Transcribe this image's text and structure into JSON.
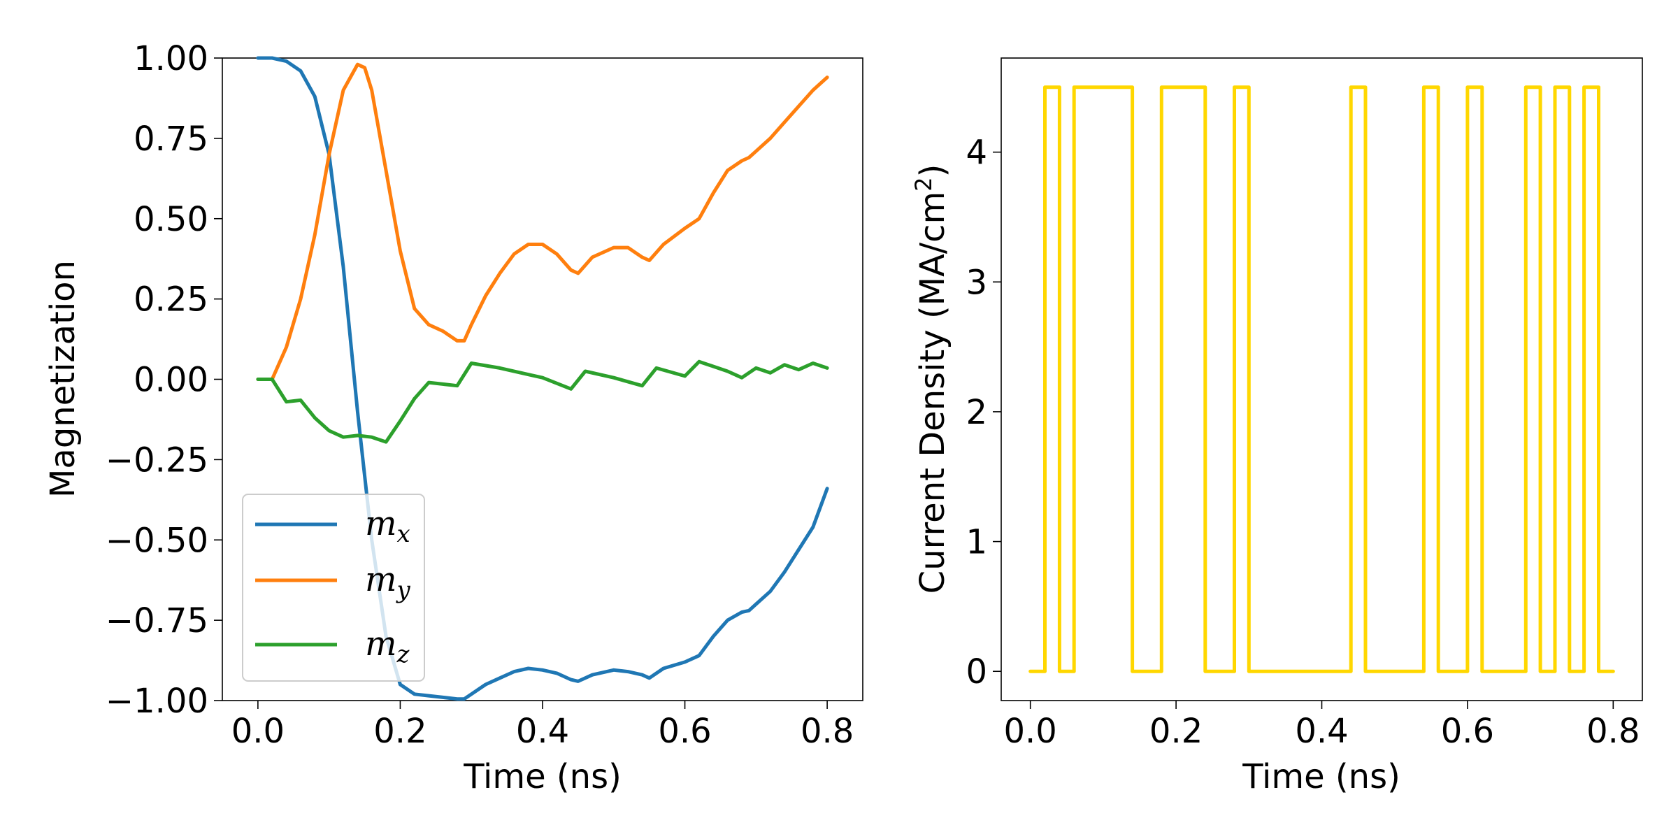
{
  "chart_data": [
    {
      "type": "line",
      "xlabel": "Time (ns)",
      "ylabel": "Magnetization",
      "xlim": [
        -0.05,
        0.85
      ],
      "ylim": [
        -1.0,
        1.0
      ],
      "xticks": [
        0.0,
        0.2,
        0.4,
        0.6,
        0.8
      ],
      "xtick_labels": [
        "0.0",
        "0.2",
        "0.4",
        "0.6",
        "0.8"
      ],
      "yticks": [
        1.0,
        0.75,
        0.5,
        0.25,
        0.0,
        -0.25,
        -0.5,
        -0.75,
        -1.0
      ],
      "ytick_labels": [
        "1.00",
        "0.75",
        "0.50",
        "0.25",
        "0.00",
        "−0.25",
        "−0.50",
        "−0.75",
        "−1.00"
      ],
      "grid": false,
      "legend_position": "lower-left",
      "series": [
        {
          "name": "m_x",
          "label_base": "m",
          "label_sub": "x",
          "color": "#1f77b4",
          "points": [
            [
              0.0,
              1.0
            ],
            [
              0.02,
              1.0
            ],
            [
              0.04,
              0.99
            ],
            [
              0.06,
              0.96
            ],
            [
              0.08,
              0.88
            ],
            [
              0.1,
              0.7
            ],
            [
              0.12,
              0.35
            ],
            [
              0.14,
              -0.1
            ],
            [
              0.16,
              -0.5
            ],
            [
              0.18,
              -0.8
            ],
            [
              0.2,
              -0.95
            ],
            [
              0.22,
              -0.98
            ],
            [
              0.24,
              -0.985
            ],
            [
              0.26,
              -0.99
            ],
            [
              0.28,
              -0.995
            ],
            [
              0.29,
              -0.995
            ],
            [
              0.3,
              -0.98
            ],
            [
              0.32,
              -0.95
            ],
            [
              0.34,
              -0.93
            ],
            [
              0.36,
              -0.91
            ],
            [
              0.38,
              -0.9
            ],
            [
              0.4,
              -0.905
            ],
            [
              0.42,
              -0.915
            ],
            [
              0.44,
              -0.935
            ],
            [
              0.45,
              -0.94
            ],
            [
              0.47,
              -0.92
            ],
            [
              0.5,
              -0.905
            ],
            [
              0.52,
              -0.91
            ],
            [
              0.54,
              -0.92
            ],
            [
              0.55,
              -0.93
            ],
            [
              0.57,
              -0.9
            ],
            [
              0.6,
              -0.88
            ],
            [
              0.62,
              -0.86
            ],
            [
              0.64,
              -0.8
            ],
            [
              0.66,
              -0.75
            ],
            [
              0.68,
              -0.725
            ],
            [
              0.69,
              -0.72
            ],
            [
              0.7,
              -0.7
            ],
            [
              0.72,
              -0.66
            ],
            [
              0.74,
              -0.6
            ],
            [
              0.76,
              -0.53
            ],
            [
              0.78,
              -0.46
            ],
            [
              0.8,
              -0.34
            ]
          ]
        },
        {
          "name": "m_y",
          "label_base": "m",
          "label_sub": "y",
          "color": "#ff7f0e",
          "points": [
            [
              0.0,
              0.0
            ],
            [
              0.02,
              0.0
            ],
            [
              0.04,
              0.1
            ],
            [
              0.06,
              0.25
            ],
            [
              0.08,
              0.45
            ],
            [
              0.1,
              0.7
            ],
            [
              0.12,
              0.9
            ],
            [
              0.14,
              0.98
            ],
            [
              0.15,
              0.97
            ],
            [
              0.16,
              0.9
            ],
            [
              0.18,
              0.65
            ],
            [
              0.2,
              0.4
            ],
            [
              0.22,
              0.22
            ],
            [
              0.24,
              0.17
            ],
            [
              0.26,
              0.15
            ],
            [
              0.28,
              0.12
            ],
            [
              0.29,
              0.12
            ],
            [
              0.3,
              0.17
            ],
            [
              0.32,
              0.26
            ],
            [
              0.34,
              0.33
            ],
            [
              0.36,
              0.39
            ],
            [
              0.38,
              0.42
            ],
            [
              0.4,
              0.42
            ],
            [
              0.42,
              0.39
            ],
            [
              0.44,
              0.34
            ],
            [
              0.45,
              0.33
            ],
            [
              0.47,
              0.38
            ],
            [
              0.5,
              0.41
            ],
            [
              0.52,
              0.41
            ],
            [
              0.54,
              0.38
            ],
            [
              0.55,
              0.37
            ],
            [
              0.57,
              0.42
            ],
            [
              0.6,
              0.47
            ],
            [
              0.62,
              0.5
            ],
            [
              0.64,
              0.58
            ],
            [
              0.66,
              0.65
            ],
            [
              0.68,
              0.68
            ],
            [
              0.69,
              0.69
            ],
            [
              0.7,
              0.71
            ],
            [
              0.72,
              0.75
            ],
            [
              0.74,
              0.8
            ],
            [
              0.76,
              0.85
            ],
            [
              0.78,
              0.9
            ],
            [
              0.8,
              0.94
            ]
          ]
        },
        {
          "name": "m_z",
          "label_base": "m",
          "label_sub": "z",
          "color": "#2ca02c",
          "points": [
            [
              0.0,
              0.0
            ],
            [
              0.02,
              0.0
            ],
            [
              0.04,
              -0.07
            ],
            [
              0.06,
              -0.065
            ],
            [
              0.08,
              -0.12
            ],
            [
              0.1,
              -0.16
            ],
            [
              0.12,
              -0.18
            ],
            [
              0.14,
              -0.175
            ],
            [
              0.16,
              -0.18
            ],
            [
              0.18,
              -0.195
            ],
            [
              0.2,
              -0.13
            ],
            [
              0.22,
              -0.06
            ],
            [
              0.24,
              -0.01
            ],
            [
              0.26,
              -0.015
            ],
            [
              0.28,
              -0.02
            ],
            [
              0.3,
              0.05
            ],
            [
              0.34,
              0.035
            ],
            [
              0.4,
              0.005
            ],
            [
              0.44,
              -0.03
            ],
            [
              0.46,
              0.025
            ],
            [
              0.5,
              0.005
            ],
            [
              0.54,
              -0.02
            ],
            [
              0.56,
              0.035
            ],
            [
              0.6,
              0.01
            ],
            [
              0.62,
              0.055
            ],
            [
              0.66,
              0.025
            ],
            [
              0.68,
              0.005
            ],
            [
              0.7,
              0.035
            ],
            [
              0.72,
              0.02
            ],
            [
              0.74,
              0.045
            ],
            [
              0.76,
              0.03
            ],
            [
              0.78,
              0.05
            ],
            [
              0.8,
              0.035
            ]
          ]
        }
      ]
    },
    {
      "type": "line",
      "xlabel": "Time (ns)",
      "ylabel_main": "Current Density (MA/cm",
      "ylabel_sup": "2",
      "ylabel_end": ")",
      "xlim": [
        -0.04,
        0.84
      ],
      "ylim": [
        -0.225,
        4.725
      ],
      "xticks": [
        0.0,
        0.2,
        0.4,
        0.6,
        0.8
      ],
      "xtick_labels": [
        "0.0",
        "0.2",
        "0.4",
        "0.6",
        "0.8"
      ],
      "yticks": [
        0,
        1,
        2,
        3,
        4
      ],
      "ytick_labels": [
        "0",
        "1",
        "2",
        "3",
        "4"
      ],
      "grid": false,
      "series": [
        {
          "name": "current",
          "color": "#ffd700",
          "step": true,
          "points": [
            [
              0.0,
              0
            ],
            [
              0.02,
              0
            ],
            [
              0.02,
              4.5
            ],
            [
              0.04,
              4.5
            ],
            [
              0.04,
              0
            ],
            [
              0.06,
              0
            ],
            [
              0.06,
              4.5
            ],
            [
              0.14,
              4.5
            ],
            [
              0.14,
              0
            ],
            [
              0.18,
              0
            ],
            [
              0.18,
              4.5
            ],
            [
              0.24,
              4.5
            ],
            [
              0.24,
              0
            ],
            [
              0.28,
              0
            ],
            [
              0.28,
              4.5
            ],
            [
              0.3,
              4.5
            ],
            [
              0.3,
              0
            ],
            [
              0.44,
              0
            ],
            [
              0.44,
              4.5
            ],
            [
              0.46,
              4.5
            ],
            [
              0.46,
              0
            ],
            [
              0.54,
              0
            ],
            [
              0.54,
              4.5
            ],
            [
              0.56,
              4.5
            ],
            [
              0.56,
              0
            ],
            [
              0.6,
              0
            ],
            [
              0.6,
              4.5
            ],
            [
              0.62,
              4.5
            ],
            [
              0.62,
              0
            ],
            [
              0.68,
              0
            ],
            [
              0.68,
              4.5
            ],
            [
              0.7,
              4.5
            ],
            [
              0.7,
              0
            ],
            [
              0.72,
              0
            ],
            [
              0.72,
              4.5
            ],
            [
              0.74,
              4.5
            ],
            [
              0.74,
              0
            ],
            [
              0.76,
              0
            ],
            [
              0.76,
              4.5
            ],
            [
              0.78,
              4.5
            ],
            [
              0.78,
              0
            ],
            [
              0.8,
              0
            ]
          ]
        }
      ]
    }
  ]
}
